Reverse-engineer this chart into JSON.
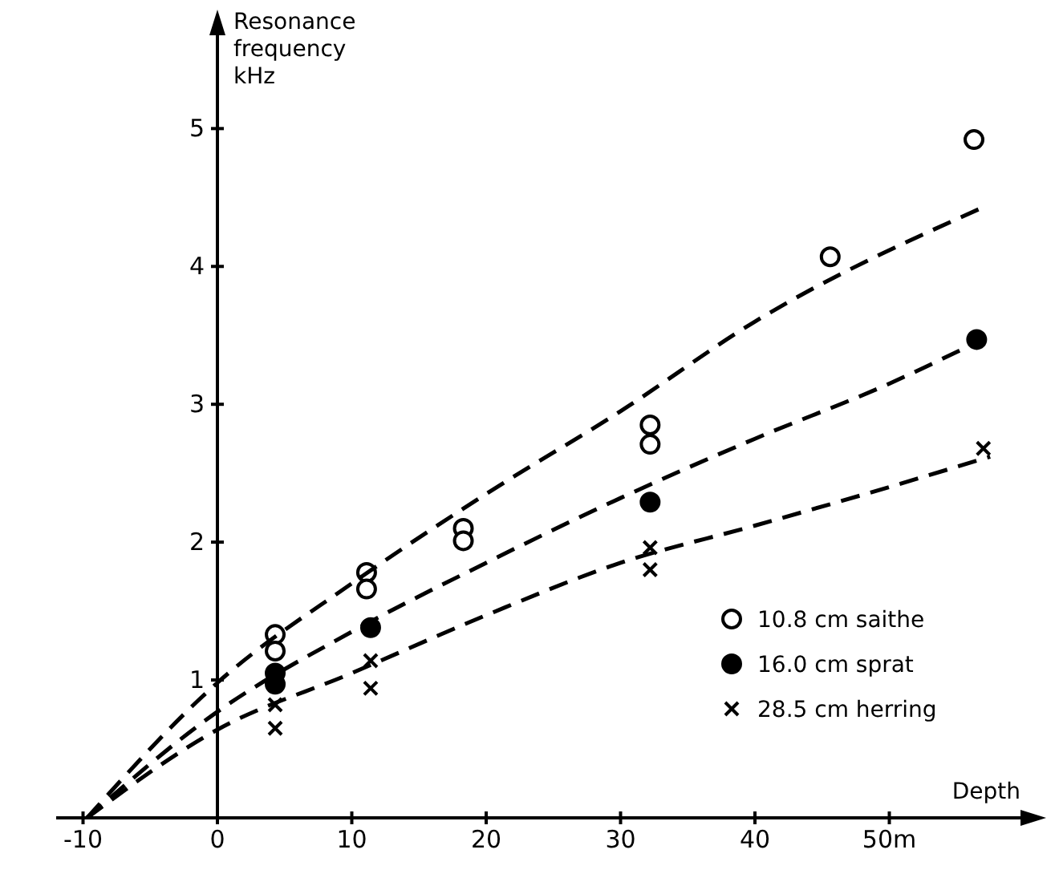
{
  "chart_data": {
    "type": "scatter",
    "xlabel": "Depth",
    "ylabel": "Resonance\nfrequency\nkHz",
    "xlim": [
      -12,
      60
    ],
    "ylim": [
      0,
      5.7
    ],
    "xticks": [
      -10,
      0,
      10,
      20,
      30,
      40,
      {
        "value": 50,
        "label": "50m"
      }
    ],
    "yticks": [
      {
        "value": 0,
        "label": null
      },
      1,
      2,
      3,
      4,
      5
    ],
    "grid": false,
    "legend": "bottom right",
    "series": [
      {
        "name": "10.8 cm saithe",
        "marker": "circle",
        "color": "#ffffff",
        "x": [
          4.3,
          4.3,
          11.1,
          11.1,
          18.3,
          18.3,
          32.2,
          32.2,
          45.6,
          56.3
        ],
        "values": [
          1.33,
          1.21,
          1.78,
          1.66,
          2.1,
          2.01,
          2.85,
          2.71,
          4.07,
          4.92
        ]
      },
      {
        "name": "16.0 cm sprat",
        "marker": "circle",
        "color": "#000000",
        "x": [
          4.3,
          4.3,
          11.4,
          32.2,
          56.5
        ],
        "values": [
          1.05,
          0.97,
          1.38,
          2.29,
          3.47
        ]
      },
      {
        "name": "28.5 cm herring",
        "marker": "cross",
        "color": "#000000",
        "x": [
          4.3,
          4.3,
          11.4,
          11.4,
          32.2,
          32.2,
          57
        ],
        "values": [
          0.82,
          0.65,
          1.14,
          0.94,
          1.96,
          1.8,
          2.68
        ]
      },
      {
        "type": "line",
        "line_style": "dashed",
        "marker": "none",
        "color": "#000000",
        "x": [
          -9.7,
          0,
          10,
          20,
          30,
          40,
          57
        ],
        "values": [
          0,
          0.98,
          1.7,
          2.35,
          2.95,
          3.6,
          4.43
        ]
      },
      {
        "type": "line",
        "line_style": "dashed",
        "marker": "none",
        "color": "#000000",
        "x": [
          -9.7,
          0,
          10,
          20,
          30,
          40,
          50,
          56.5
        ],
        "values": [
          0,
          0.77,
          1.35,
          1.85,
          2.32,
          2.75,
          3.15,
          3.45
        ]
      },
      {
        "type": "line",
        "line_style": "dashed",
        "marker": "none",
        "color": "#000000",
        "x": [
          -9.7,
          0,
          10,
          20,
          30,
          40,
          50,
          57.5
        ],
        "values": [
          0,
          0.64,
          1.05,
          1.47,
          1.85,
          2.12,
          2.4,
          2.62
        ]
      }
    ]
  }
}
